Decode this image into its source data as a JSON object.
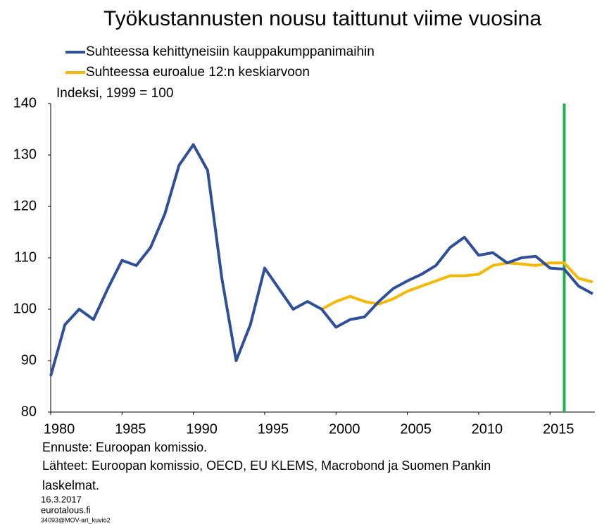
{
  "chart_data": {
    "type": "line",
    "title": "Työkustannusten nousu taittunut viime vuosina",
    "ylabel": "Indeksi, 1999 = 100",
    "x": [
      1980,
      1981,
      1982,
      1983,
      1984,
      1985,
      1986,
      1987,
      1988,
      1989,
      1990,
      1991,
      1992,
      1993,
      1994,
      1995,
      1996,
      1997,
      1998,
      1999,
      2000,
      2001,
      2002,
      2003,
      2004,
      2005,
      2006,
      2007,
      2008,
      2009,
      2010,
      2011,
      2012,
      2013,
      2014,
      2015,
      2016,
      2017,
      2018
    ],
    "series": [
      {
        "name": "Suhteessa kehittyneisiin kauppakumppanimaihin",
        "color": "#2f4f9a",
        "values": [
          87,
          97,
          100,
          98,
          104,
          109.5,
          108.5,
          112,
          118.5,
          128,
          132,
          127,
          106,
          90,
          97,
          108,
          104,
          100,
          101.5,
          100,
          96.5,
          98,
          98.5,
          101.5,
          104,
          105.5,
          106.8,
          108.5,
          112,
          114,
          110.5,
          111,
          109,
          110,
          110.3,
          108,
          107.8,
          104.5,
          103
        ]
      },
      {
        "name": "Suhteessa euroalue 12:n keskiarvoon",
        "color": "#f5b800",
        "values": [
          null,
          null,
          null,
          null,
          null,
          null,
          null,
          null,
          null,
          null,
          null,
          null,
          null,
          null,
          null,
          null,
          null,
          null,
          null,
          100,
          101.5,
          102.5,
          101.5,
          101,
          102,
          103.5,
          104.5,
          105.5,
          106.5,
          106.5,
          106.8,
          108.5,
          109,
          108.8,
          108.5,
          109,
          109,
          106,
          105.3
        ]
      }
    ],
    "vline": 2016,
    "vline_color": "#1db34a",
    "xlim": [
      1980,
      2018
    ],
    "xticks": [
      1980,
      1985,
      1990,
      1995,
      2000,
      2005,
      2010,
      2015
    ],
    "ylim": [
      80,
      140
    ],
    "yticks": [
      80,
      90,
      100,
      110,
      120,
      130,
      140
    ],
    "notes": [
      "Ennuste: Euroopan komissio.",
      "Lähteet: Euroopan komissio, OECD, EU KLEMS, Macrobond ja Suomen Pankin",
      "laskelmat."
    ],
    "small_notes": [
      "16.3.2017",
      "eurotalous.fi",
      "34093@MOV-art_kuvio2"
    ]
  }
}
